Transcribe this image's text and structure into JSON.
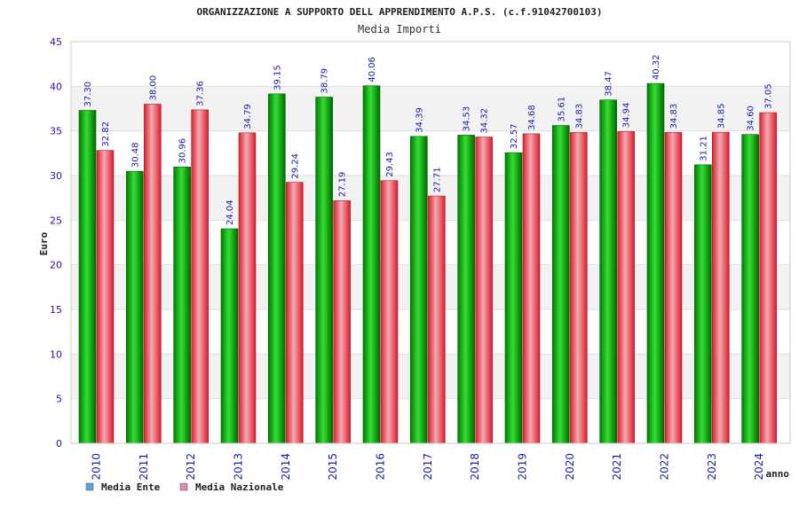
{
  "chart_data": {
    "type": "bar",
    "title": "ORGANIZZAZIONE A SUPPORTO DELL APPRENDIMENTO A.P.S. (c.f.91042700103)",
    "subtitle": "Media Importi",
    "xlabel": "anno",
    "ylabel": "Euro",
    "ylim": [
      0,
      45
    ],
    "yticks": [
      0,
      5,
      10,
      15,
      20,
      25,
      30,
      35,
      40,
      45
    ],
    "grid": "alternating horizontal bands",
    "legend_position": "bottom-left",
    "categories": [
      "2010",
      "2011",
      "2012",
      "2013",
      "2014",
      "2015",
      "2016",
      "2017",
      "2018",
      "2019",
      "2020",
      "2021",
      "2022",
      "2023",
      "2024"
    ],
    "series": [
      {
        "name": "Media Ente",
        "color": "#00a800",
        "legend_color": "#5aa0e6",
        "values": [
          37.3,
          30.48,
          30.96,
          24.04,
          39.15,
          38.79,
          40.06,
          34.39,
          34.53,
          32.57,
          35.61,
          38.47,
          40.32,
          31.21,
          34.6
        ],
        "labels": [
          "37.30",
          "30.48",
          "30.96",
          "24.04",
          "39.15",
          "38.79",
          "40.06",
          "34.39",
          "34.53",
          "32.57",
          "35.61",
          "38.47",
          "40.32",
          "31.21",
          "34.60"
        ]
      },
      {
        "name": "Media Nazionale",
        "color": "#e8303a",
        "legend_color": "#e888b0",
        "values": [
          32.82,
          38.0,
          37.36,
          34.79,
          29.24,
          27.19,
          29.43,
          27.71,
          34.32,
          34.68,
          34.83,
          34.94,
          34.83,
          34.85,
          37.05
        ],
        "labels": [
          "32.82",
          "38.00",
          "37.36",
          "34.79",
          "29.24",
          "27.19",
          "29.43",
          "27.71",
          "34.32",
          "34.68",
          "34.83",
          "34.94",
          "34.83",
          "34.85",
          "37.05"
        ]
      }
    ]
  }
}
